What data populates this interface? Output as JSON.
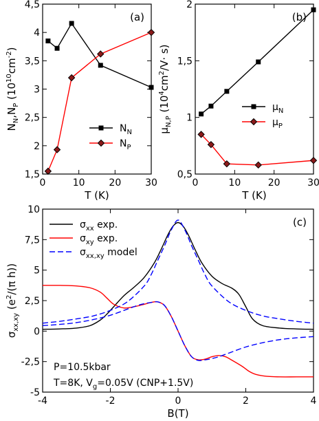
{
  "chart_data": [
    {
      "panel": "(a)",
      "type": "line",
      "xlabel": "T (K)",
      "ylabel_base": "N",
      "ylabel_sub1": "N",
      "ylabel_sep": ",N",
      "ylabel_sub2": "P",
      "ylabel_unit": " (10",
      "ylabel_exp": "10",
      "ylabel_unit2": "cm",
      "ylabel_exp2": "-2",
      "ylabel_close": ")",
      "xlim": [
        0,
        30
      ],
      "ylim": [
        1.5,
        4.5
      ],
      "xticks": [
        "0",
        "10",
        "20",
        "30"
      ],
      "yticks": [
        "1,5",
        "2",
        "2,5",
        "3",
        "3,5",
        "4",
        "4,5"
      ],
      "legend_position": "lower-right",
      "series": [
        {
          "name": "N",
          "sub": "N",
          "color": "#000000",
          "marker": "square",
          "x": [
            1.5,
            4,
            8,
            16,
            30
          ],
          "y": [
            3.85,
            3.72,
            4.16,
            3.42,
            3.03
          ]
        },
        {
          "name": "N",
          "sub": "P",
          "color": "#ff0000",
          "marker": "diamond",
          "x": [
            1.5,
            4,
            8,
            16,
            30
          ],
          "y": [
            1.55,
            1.93,
            3.2,
            3.62,
            4.0
          ]
        }
      ]
    },
    {
      "panel": "(b)",
      "type": "line",
      "xlabel": "T (K)",
      "ylabel_base": "μ",
      "ylabel_sub1": "N,P",
      "ylabel_unit": " (10",
      "ylabel_exp": "4",
      "ylabel_unit2": "cm",
      "ylabel_exp2": "2",
      "ylabel_close": "/V· s)",
      "xlim": [
        0,
        30
      ],
      "ylim": [
        0.5,
        2.0
      ],
      "xticks": [
        "0",
        "10",
        "20",
        "30"
      ],
      "yticks": [
        "0,5",
        "1",
        "1,5",
        "2"
      ],
      "legend_position": "center-right",
      "series": [
        {
          "name": "μ",
          "sub": "N",
          "color": "#000000",
          "marker": "square",
          "x": [
            1.5,
            4,
            8,
            16,
            30
          ],
          "y": [
            1.03,
            1.1,
            1.23,
            1.49,
            1.95
          ]
        },
        {
          "name": "μ",
          "sub": "P",
          "color": "#ff0000",
          "marker": "diamond",
          "x": [
            1.5,
            4,
            8,
            16,
            30
          ],
          "y": [
            0.85,
            0.76,
            0.59,
            0.58,
            0.62
          ]
        }
      ]
    },
    {
      "panel": "(c)",
      "type": "line",
      "xlabel": "B(T)",
      "ylabel_base": "σ",
      "ylabel_sub1": "xx,xy",
      "ylabel_unit": " (e",
      "ylabel_exp": "2",
      "ylabel_close": "/(π h))",
      "xlim": [
        -4,
        4
      ],
      "ylim": [
        -5,
        10
      ],
      "xticks": [
        "-4",
        "-2",
        "0",
        "2",
        "4"
      ],
      "yticks": [
        "-5",
        "-2,5",
        "0",
        "2,5",
        "5",
        "7,5",
        "10"
      ],
      "legend_position": "top-left",
      "annotation_lines": [
        "P=10.5kbar",
        "T=8K, V",
        "g",
        "=0.05V (CNP+1.5V)"
      ],
      "series": [
        {
          "name": "σ",
          "sub": "xx",
          "suffix": " exp.",
          "color": "#000000",
          "dash": "none",
          "x": [
            -4,
            -3.5,
            -3,
            -2.6,
            -2.3,
            -2.1,
            -1.9,
            -1.6,
            -1.3,
            -1.0,
            -0.7,
            -0.5,
            -0.3,
            -0.15,
            0,
            0.15,
            0.3,
            0.5,
            0.7,
            1.0,
            1.3,
            1.6,
            1.8,
            2.0,
            2.2,
            2.5,
            3.0,
            3.5,
            4.0
          ],
          "y": [
            0.15,
            0.18,
            0.25,
            0.45,
            0.9,
            1.4,
            2.0,
            2.9,
            3.6,
            4.4,
            5.6,
            6.7,
            7.9,
            8.6,
            8.9,
            8.6,
            7.9,
            6.7,
            5.6,
            4.5,
            3.9,
            3.5,
            3.0,
            2.0,
            1.0,
            0.45,
            0.25,
            0.18,
            0.15
          ]
        },
        {
          "name": "σ",
          "sub": "xy",
          "suffix": " exp.",
          "color": "#ff0000",
          "dash": "none",
          "x": [
            -4,
            -3.5,
            -3,
            -2.6,
            -2.3,
            -2.1,
            -1.9,
            -1.6,
            -1.3,
            -1.0,
            -0.8,
            -0.6,
            -0.4,
            -0.2,
            0,
            0.2,
            0.4,
            0.6,
            0.8,
            1.0,
            1.2,
            1.4,
            1.6,
            1.9,
            2.1,
            2.3,
            2.6,
            3.0,
            3.5,
            4.0
          ],
          "y": [
            3.75,
            3.75,
            3.7,
            3.55,
            3.2,
            2.7,
            2.2,
            1.9,
            2.0,
            2.2,
            2.35,
            2.4,
            2.1,
            1.2,
            0,
            -1.2,
            -2.1,
            -2.35,
            -2.3,
            -2.1,
            -2.0,
            -2.1,
            -2.4,
            -2.9,
            -3.3,
            -3.55,
            -3.7,
            -3.75,
            -3.75,
            -3.75
          ]
        },
        {
          "name": "σ",
          "sub": "xx,xy",
          "suffix": " model",
          "color": "#0000ff",
          "dash": "8,4",
          "x": [
            -4,
            -3.5,
            -3,
            -2.5,
            -2,
            -1.5,
            -1.0,
            -0.8,
            -0.6,
            -0.4,
            -0.2,
            0,
            0.2,
            0.4,
            0.6,
            0.8,
            1.0,
            1.5,
            2.0,
            2.5,
            3.0,
            3.5,
            4.0
          ],
          "y": [
            0.65,
            0.8,
            1.0,
            1.25,
            1.7,
            2.4,
            3.7,
            4.6,
            5.8,
            7.0,
            8.3,
            9.1,
            8.3,
            7.0,
            5.8,
            4.6,
            3.7,
            2.4,
            1.7,
            1.25,
            1.0,
            0.8,
            0.65
          ]
        },
        {
          "name": "",
          "sub": "",
          "suffix": "",
          "color": "#0000ff",
          "dash": "8,4",
          "x": [
            -4,
            -3.5,
            -3,
            -2.5,
            -2,
            -1.5,
            -1.2,
            -1.0,
            -0.8,
            -0.6,
            -0.4,
            -0.2,
            0,
            0.2,
            0.4,
            0.6,
            0.8,
            1.0,
            1.2,
            1.5,
            2.0,
            2.5,
            3.0,
            3.5,
            4.0
          ],
          "y": [
            0.45,
            0.55,
            0.7,
            0.95,
            1.3,
            1.8,
            2.1,
            2.25,
            2.35,
            2.4,
            2.1,
            1.2,
            0,
            -1.2,
            -2.1,
            -2.4,
            -2.35,
            -2.25,
            -2.1,
            -1.8,
            -1.3,
            -0.95,
            -0.7,
            -0.55,
            -0.45
          ]
        }
      ]
    }
  ]
}
